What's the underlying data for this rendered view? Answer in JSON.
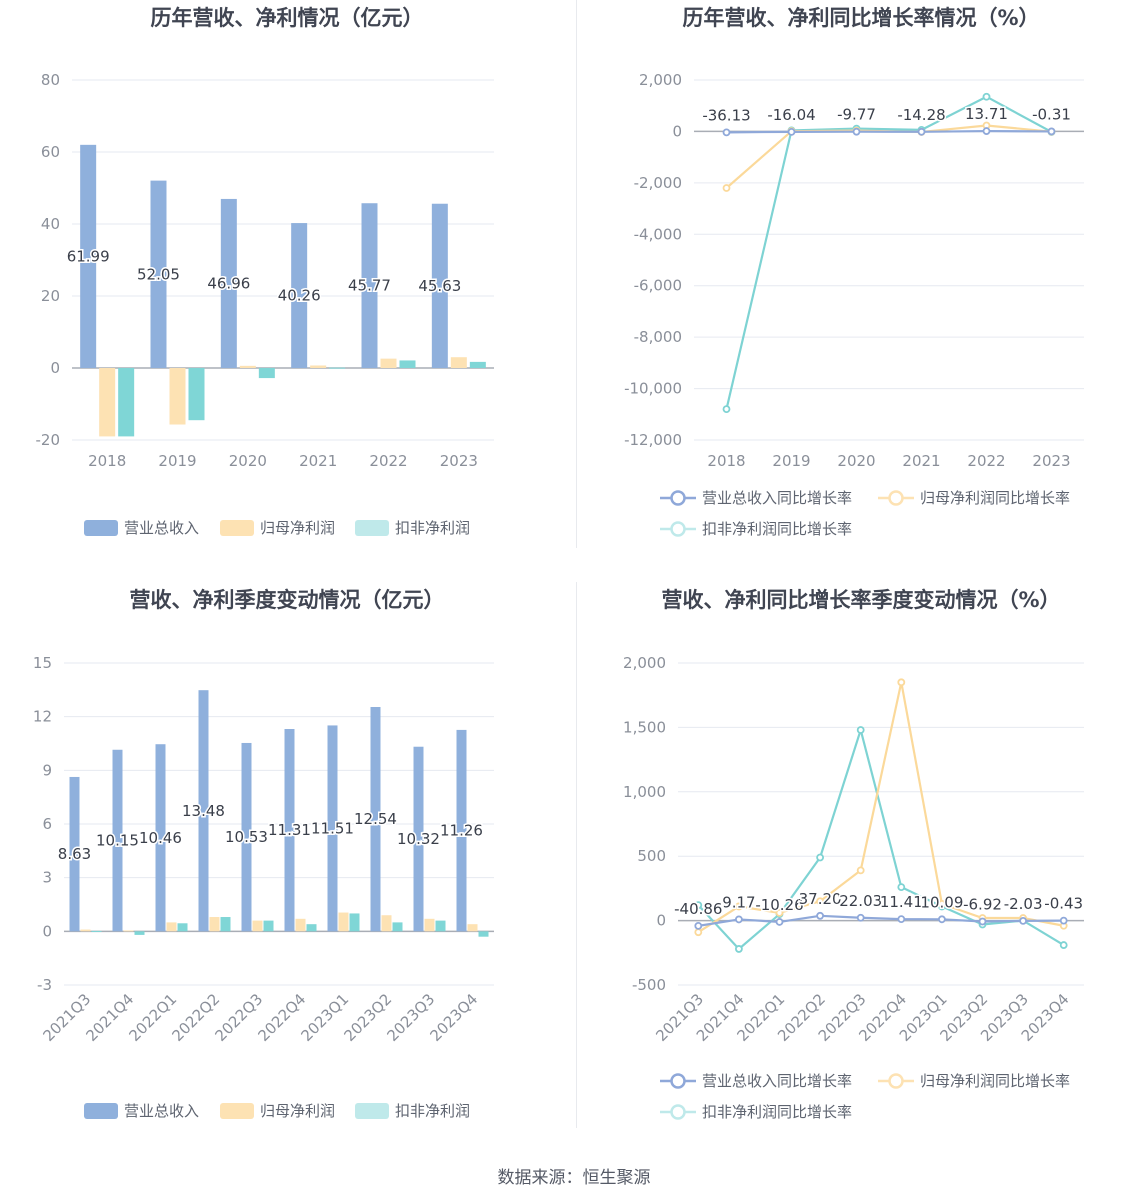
{
  "titles": {
    "p1": "历年营收、净利情况（亿元）",
    "p2": "历年营收、净利同比增长率情况（%）",
    "p3": "营收、净利季度变动情况（亿元）",
    "p4": "营收、净利同比增长率季度变动情况（%）"
  },
  "source": "数据来源：恒生聚源",
  "colors": {
    "revenue": "#8fb0dc",
    "parent_profit": "#fde2b3",
    "deducted_profit": "#7fd6d6",
    "rev_line": "#8fa8d9",
    "parent_line": "#fbd99a",
    "deducted_line": "#7ed3d3"
  },
  "legends": {
    "bar": [
      "营业总收入",
      "归母净利润",
      "扣非净利润"
    ],
    "line": [
      "营业总收入同比增长率",
      "归母净利润同比增长率",
      "扣非净利润同比增长率"
    ]
  },
  "chart_data": [
    {
      "id": "annual-amount",
      "type": "bar",
      "title": "历年营收、净利情况（亿元）",
      "categories": [
        "2018",
        "2019",
        "2020",
        "2021",
        "2022",
        "2023"
      ],
      "series": [
        {
          "name": "营业总收入",
          "values": [
            61.99,
            52.05,
            46.96,
            40.26,
            45.77,
            45.63
          ]
        },
        {
          "name": "归母净利润",
          "values": [
            -19.0,
            -15.7,
            0.6,
            0.7,
            2.6,
            3.0
          ]
        },
        {
          "name": "扣非净利润",
          "values": [
            -19.0,
            -14.5,
            -2.8,
            0.1,
            2.1,
            1.7
          ]
        }
      ],
      "data_labels": [
        "61.99",
        "52.05",
        "46.96",
        "40.26",
        "45.77",
        "45.63"
      ],
      "ylim": [
        -20,
        80
      ],
      "yticks": [
        "-20",
        "0",
        "20",
        "40",
        "60",
        "80"
      ],
      "legend": "bottom",
      "grid": true
    },
    {
      "id": "annual-growth",
      "type": "line",
      "title": "历年营收、净利同比增长率情况（%）",
      "categories": [
        "2018",
        "2019",
        "2020",
        "2021",
        "2022",
        "2023"
      ],
      "series": [
        {
          "name": "营业总收入同比增长率",
          "values": [
            -36.13,
            -16.04,
            -9.77,
            -14.28,
            13.71,
            -0.31
          ]
        },
        {
          "name": "归母净利润同比增长率",
          "values": [
            -2200,
            10,
            30,
            -20,
            230,
            -10
          ]
        },
        {
          "name": "扣非净利润同比增长率",
          "values": [
            -10800,
            40,
            110,
            60,
            1350,
            -20
          ]
        }
      ],
      "data_labels": [
        "-36.13",
        "-16.04",
        "-9.77",
        "-14.28",
        "13.71",
        "-0.31"
      ],
      "ylim": [
        -12000,
        2000
      ],
      "yticks": [
        "-12,000",
        "-10,000",
        "-8,000",
        "-6,000",
        "-4,000",
        "-2,000",
        "0",
        "2,000"
      ],
      "legend": "bottom",
      "grid": true
    },
    {
      "id": "quarterly-amount",
      "type": "bar",
      "title": "营收、净利季度变动情况（亿元）",
      "categories": [
        "2021Q3",
        "2021Q4",
        "2022Q1",
        "2022Q2",
        "2022Q3",
        "2022Q4",
        "2023Q1",
        "2023Q2",
        "2023Q3",
        "2023Q4"
      ],
      "series": [
        {
          "name": "营业总收入",
          "values": [
            8.63,
            10.15,
            10.46,
            13.48,
            10.53,
            11.31,
            11.51,
            12.54,
            10.32,
            11.26
          ]
        },
        {
          "name": "归母净利润",
          "values": [
            0.1,
            0.05,
            0.5,
            0.8,
            0.6,
            0.7,
            1.05,
            0.9,
            0.7,
            0.4
          ]
        },
        {
          "name": "扣非净利润",
          "values": [
            0.02,
            -0.2,
            0.45,
            0.8,
            0.6,
            0.4,
            1.0,
            0.5,
            0.6,
            -0.3
          ]
        }
      ],
      "data_labels": [
        "8.63",
        "10.15",
        "10.46",
        "13.48",
        "10.53",
        "11.31",
        "11.51",
        "12.54",
        "10.32",
        "11.26"
      ],
      "ylim": [
        -3,
        15
      ],
      "yticks": [
        "-3",
        "0",
        "3",
        "6",
        "9",
        "12",
        "15"
      ],
      "legend": "bottom",
      "grid": true
    },
    {
      "id": "quarterly-growth",
      "type": "line",
      "title": "营收、净利同比增长率季度变动情况（%）",
      "categories": [
        "2021Q3",
        "2021Q4",
        "2022Q1",
        "2022Q2",
        "2022Q3",
        "2022Q4",
        "2023Q1",
        "2023Q2",
        "2023Q3",
        "2023Q4"
      ],
      "series": [
        {
          "name": "营业总收入同比增长率",
          "values": [
            -40.86,
            9.17,
            -10.26,
            37.2,
            22.03,
            11.41,
            10.09,
            -6.92,
            -2.03,
            -0.43
          ]
        },
        {
          "name": "归母净利润同比增长率",
          "values": [
            -90,
            110,
            60,
            150,
            390,
            1850,
            130,
            20,
            20,
            -40
          ]
        },
        {
          "name": "扣非净利润同比增长率",
          "values": [
            120,
            -220,
            50,
            490,
            1480,
            260,
            110,
            -30,
            0,
            -190
          ]
        }
      ],
      "data_labels": [
        "-40.86",
        "9.17",
        "-10.26",
        "37.20",
        "22.03",
        "11.41",
        "10.09",
        "-6.92",
        "-2.03",
        "-0.43"
      ],
      "ylim": [
        -500,
        2000
      ],
      "yticks": [
        "-500",
        "0",
        "500",
        "1,000",
        "1,500",
        "2,000"
      ],
      "legend": "bottom",
      "grid": true
    }
  ]
}
